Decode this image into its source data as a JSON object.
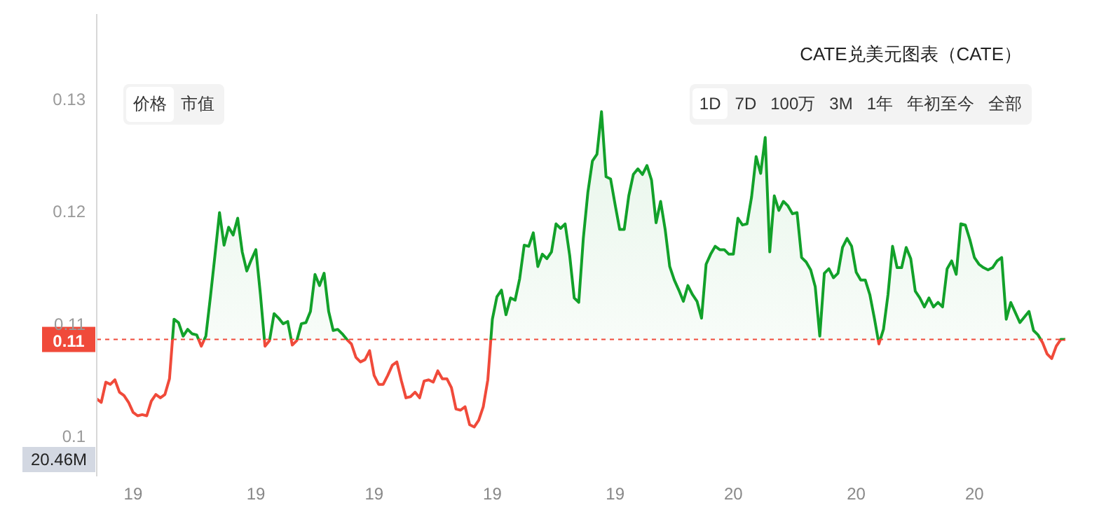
{
  "chart_data": {
    "type": "area",
    "title": "CATE兑美元图表（CATE）",
    "annotations": [
      "价格",
      "市值",
      "1D",
      "7D",
      "100万",
      "3M",
      "1年",
      "年初至今",
      "全部",
      "20.46M"
    ],
    "categories": [
      null,
      null,
      null,
      null,
      null,
      null,
      null,
      null,
      "19",
      null,
      null,
      null,
      null,
      null,
      null,
      null,
      null,
      null,
      null,
      null,
      null,
      null,
      null,
      null,
      null,
      null,
      null,
      null,
      null,
      null,
      null,
      null,
      null,
      null,
      null,
      "19",
      null,
      null,
      null,
      null,
      null,
      null,
      null,
      null,
      null,
      null,
      null,
      null,
      null,
      null,
      null,
      null,
      null,
      null,
      null,
      null,
      null,
      null,
      null,
      null,
      null,
      "19",
      null,
      null,
      null,
      null,
      null,
      null,
      null,
      null,
      null,
      null,
      null,
      null,
      null,
      null,
      null,
      null,
      null,
      null,
      null,
      null,
      null,
      null,
      null,
      null,
      null,
      "19",
      null,
      null,
      null,
      null,
      null,
      null,
      null,
      null,
      null,
      null,
      null,
      null,
      null,
      null,
      null,
      null,
      null,
      null,
      null,
      null,
      null,
      null,
      null,
      null,
      null,
      null,
      "19",
      null,
      null,
      null,
      null,
      null,
      null,
      null,
      null,
      null,
      null,
      null,
      null,
      null,
      null,
      null,
      null,
      null,
      null,
      null,
      null,
      null,
      null,
      null,
      null,
      null,
      "20",
      null,
      null,
      null,
      null,
      null,
      null,
      null,
      null,
      null,
      null,
      null,
      null,
      null,
      null,
      null,
      null,
      null,
      null,
      null,
      null,
      null,
      null,
      null,
      null,
      null,
      null,
      "20",
      null,
      null,
      null,
      null,
      null,
      null,
      null,
      null,
      null,
      null,
      null,
      null,
      null,
      null,
      null,
      null,
      null,
      null,
      null,
      null,
      null,
      null,
      null,
      null,
      null,
      "20",
      null,
      null,
      null,
      null,
      null,
      null,
      null,
      null,
      null,
      null,
      null,
      null,
      null,
      null,
      null,
      null,
      null,
      null,
      null,
      null
    ],
    "ylim": [
      0.0964,
      0.1376
    ],
    "yticks": [
      0.1,
      0.11,
      0.12,
      0.13
    ],
    "ref_lines": [
      {
        "axis": "y",
        "value": 0.1086,
        "label": "0.11",
        "color": "#f04a3a",
        "line_style": "dashed"
      }
    ],
    "series": [
      {
        "color": "#12a12a",
        "values": [
          0.1033,
          0.103,
          0.1048,
          0.1046,
          0.105,
          0.1039,
          0.1036,
          0.103,
          0.1021,
          0.1018,
          0.1019,
          0.1018,
          0.1031,
          0.1037,
          0.1034,
          0.1037,
          0.1051,
          0.1104,
          0.1101,
          0.1089,
          0.1095,
          0.1091,
          0.109,
          0.108,
          0.1089,
          0.1124,
          0.1161,
          0.1199,
          0.117,
          0.1186,
          0.1179,
          0.1194,
          0.1164,
          0.1147,
          0.1157,
          0.1166,
          0.1126,
          0.108,
          0.1085,
          0.1109,
          0.1105,
          0.11,
          0.1102,
          0.1081,
          0.1085,
          0.11,
          0.1101,
          0.1111,
          0.1144,
          0.1134,
          0.1145,
          0.1111,
          0.1094,
          0.1095,
          0.1091,
          0.1086,
          0.1082,
          0.107,
          0.1066,
          0.1068,
          0.1076,
          0.1054,
          0.1046,
          0.1046,
          0.1054,
          0.1063,
          0.1066,
          0.1049,
          0.1034,
          0.1035,
          0.1039,
          0.1034,
          0.1049,
          0.105,
          0.1048,
          0.1058,
          0.1051,
          0.1051,
          0.1043,
          0.1024,
          0.1023,
          0.1026,
          0.101,
          0.1008,
          0.1014,
          0.1026,
          0.105,
          0.1104,
          0.1124,
          0.113,
          0.1108,
          0.1123,
          0.1121,
          0.114,
          0.117,
          0.1169,
          0.1181,
          0.1151,
          0.1162,
          0.1158,
          0.1164,
          0.1189,
          0.1185,
          0.1189,
          0.1161,
          0.1123,
          0.1119,
          0.1176,
          0.1217,
          0.1245,
          0.1251,
          0.1289,
          0.1231,
          0.1229,
          0.1206,
          0.1184,
          0.1184,
          0.1214,
          0.1233,
          0.1238,
          0.1233,
          0.1241,
          0.1228,
          0.119,
          0.1209,
          0.1184,
          0.1151,
          0.1139,
          0.113,
          0.112,
          0.1134,
          0.1126,
          0.112,
          0.1105,
          0.1153,
          0.1162,
          0.1169,
          0.1166,
          0.1166,
          0.1162,
          0.1162,
          0.1194,
          0.1188,
          0.1189,
          0.1213,
          0.1249,
          0.1234,
          0.1266,
          0.1164,
          0.1214,
          0.1201,
          0.1209,
          0.1205,
          0.1198,
          0.1199,
          0.1159,
          0.1155,
          0.1148,
          0.1133,
          0.1089,
          0.1145,
          0.1149,
          0.1141,
          0.1145,
          0.1168,
          0.1176,
          0.1169,
          0.1146,
          0.1139,
          0.1139,
          0.1126,
          0.1105,
          0.1082,
          0.1095,
          0.1126,
          0.1169,
          0.115,
          0.115,
          0.1168,
          0.1158,
          0.1129,
          0.1123,
          0.1115,
          0.1123,
          0.1115,
          0.1119,
          0.1115,
          0.1149,
          0.1156,
          0.1144,
          0.1189,
          0.1188,
          0.1175,
          0.1159,
          0.1153,
          0.115,
          0.1148,
          0.115,
          0.1156,
          0.1159,
          0.1104,
          0.1119,
          0.111,
          0.1101,
          0.1106,
          0.1111,
          0.1094,
          0.109,
          0.1083,
          0.1073,
          0.1069,
          0.108,
          0.1086,
          0.1086
        ]
      }
    ]
  }
}
